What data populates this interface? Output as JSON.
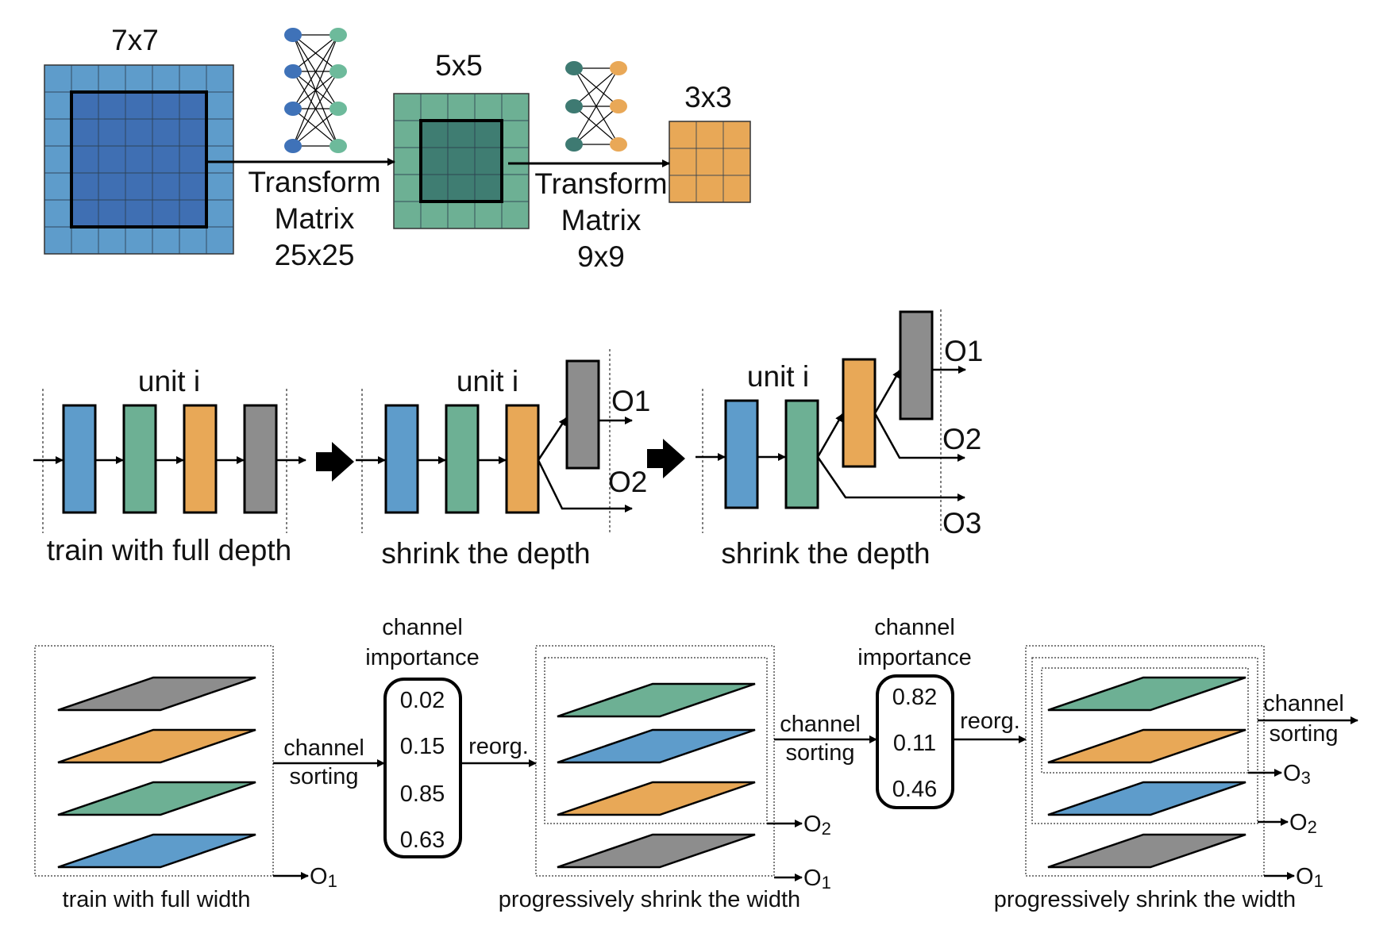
{
  "colors": {
    "blue": "#5e9ccb",
    "dark_blue": "#3f6fb3",
    "green": "#6db094",
    "dark_green": "#3f7d72",
    "orange": "#e8a857",
    "gray": "#8d8d8d",
    "node_blue": "#3f72b8",
    "node_green": "#6dba9b",
    "node_teal": "#3e7a72",
    "node_orange": "#e9a857"
  },
  "kernel_panel": {
    "grid7_label": "7x7",
    "grid5_label": "5x5",
    "grid3_label": "3x3",
    "transform1": [
      "Transform",
      "Matrix",
      "25x25"
    ],
    "transform2": [
      "Transform",
      "Matrix",
      "9x9"
    ]
  },
  "depth_panel": {
    "unit_label": "unit i",
    "stage1_caption": "train with full depth",
    "stage2_caption": "shrink the depth",
    "stage3_caption": "shrink the depth",
    "o1": "O1",
    "o2": "O2",
    "o3": "O3"
  },
  "width_panel": {
    "stage1_caption": "train with full width",
    "stage2_caption": "progressively shrink the width",
    "stage3_caption": "progressively shrink the width",
    "channel_sorting": [
      "channel",
      "sorting"
    ],
    "reorg": "reorg.",
    "importance_title": [
      "channel",
      "importance"
    ],
    "importance1": [
      "0.02",
      "0.15",
      "0.85",
      "0.63"
    ],
    "importance2": [
      "0.82",
      "0.11",
      "0.46"
    ],
    "out1": "O",
    "out1_sub": "1",
    "out2": "O",
    "out2_sub": "2",
    "out3": "O",
    "out3_sub": "3"
  }
}
